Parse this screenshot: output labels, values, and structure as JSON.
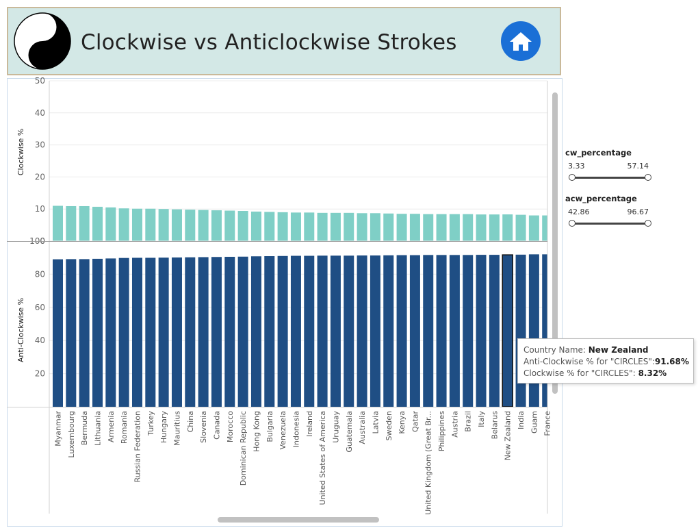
{
  "header": {
    "title": "Clockwise vs Anticlockwise Strokes"
  },
  "icons": {
    "logo": "yin-yang-icon",
    "home": "home-icon"
  },
  "colors": {
    "cw_bar": "#7fcfc6",
    "acw_bar": "#1f4e84",
    "highlight_border": "#111111"
  },
  "filters": [
    {
      "name": "cw_percentage",
      "min": "3.33",
      "max": "57.14"
    },
    {
      "name": "acw_percentage",
      "min": "42.86",
      "max": "96.67"
    }
  ],
  "tooltip": {
    "country_label": "Country Name:",
    "country_value": "New Zealand",
    "acw_label": "Anti-Clockwise % for \"CIRCLES\":",
    "acw_value": "91.68%",
    "cw_label": "Clockwise % for \"CIRCLES\":",
    "cw_value": "8.32%"
  },
  "chart_data": [
    {
      "type": "bar",
      "ylabel": "Clockwise %",
      "ylim": [
        0,
        50
      ],
      "yticks": [
        0,
        10,
        20,
        30,
        40,
        50
      ],
      "grid": true,
      "categories": [
        "Myanmar",
        "Luxembourg",
        "Bermuda",
        "Lithuania",
        "Armenia",
        "Romania",
        "Russian Federation",
        "Turkey",
        "Hungary",
        "Mauritius",
        "China",
        "Slovenia",
        "Canada",
        "Morocco",
        "Dominican Republic",
        "Hong Kong",
        "Bulgaria",
        "Venezuela",
        "Indonesia",
        "Ireland",
        "United States of America",
        "Uruguay",
        "Guatemala",
        "Australia",
        "Latvia",
        "Sweden",
        "Kenya",
        "Qatar",
        "United Kingdom (Great Br...",
        "Philippines",
        "Austria",
        "Brazil",
        "Italy",
        "Belarus",
        "New Zealand",
        "India",
        "Guam",
        "France"
      ],
      "values": [
        11.0,
        10.9,
        10.9,
        10.7,
        10.5,
        10.2,
        10.1,
        10.1,
        10.0,
        9.9,
        9.8,
        9.7,
        9.6,
        9.5,
        9.4,
        9.2,
        9.1,
        9.0,
        8.9,
        8.9,
        8.8,
        8.8,
        8.8,
        8.7,
        8.7,
        8.6,
        8.5,
        8.5,
        8.4,
        8.4,
        8.4,
        8.4,
        8.3,
        8.3,
        8.32,
        8.2,
        8.0,
        8.0
      ]
    },
    {
      "type": "bar",
      "ylabel": "Anti-Clockwise %",
      "ylim": [
        0,
        100
      ],
      "yticks": [
        20,
        40,
        60,
        80,
        100
      ],
      "grid": true,
      "categories": [
        "Myanmar",
        "Luxembourg",
        "Bermuda",
        "Lithuania",
        "Armenia",
        "Romania",
        "Russian Federation",
        "Turkey",
        "Hungary",
        "Mauritius",
        "China",
        "Slovenia",
        "Canada",
        "Morocco",
        "Dominican Republic",
        "Hong Kong",
        "Bulgaria",
        "Venezuela",
        "Indonesia",
        "Ireland",
        "United States of America",
        "Uruguay",
        "Guatemala",
        "Australia",
        "Latvia",
        "Sweden",
        "Kenya",
        "Qatar",
        "United Kingdom (Great Br...",
        "Philippines",
        "Austria",
        "Brazil",
        "Italy",
        "Belarus",
        "New Zealand",
        "India",
        "Guam",
        "France"
      ],
      "values": [
        89.0,
        89.1,
        89.1,
        89.3,
        89.5,
        89.8,
        89.9,
        89.9,
        90.0,
        90.1,
        90.2,
        90.3,
        90.4,
        90.5,
        90.6,
        90.8,
        90.9,
        91.0,
        91.1,
        91.1,
        91.2,
        91.2,
        91.2,
        91.3,
        91.3,
        91.4,
        91.5,
        91.5,
        91.6,
        91.6,
        91.6,
        91.6,
        91.7,
        91.7,
        91.68,
        91.8,
        92.0,
        92.0
      ],
      "highlighted": "New Zealand"
    }
  ]
}
